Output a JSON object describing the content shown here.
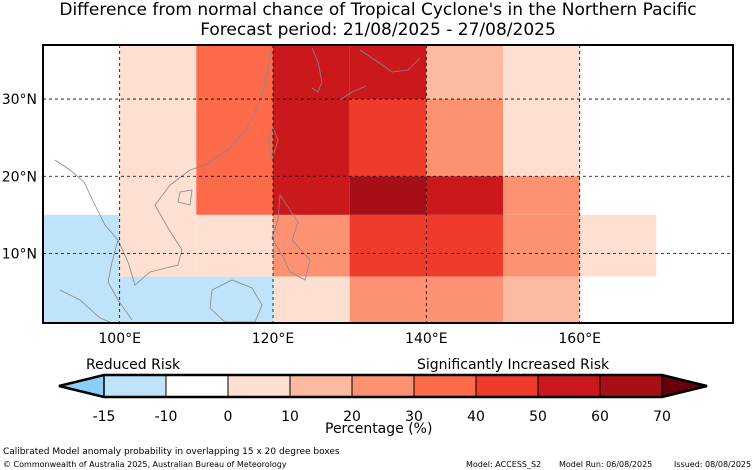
{
  "title_line1": "Difference from normal chance of Tropical Cyclone's in the Northern Pacific",
  "title_line2": "Forecast period: 21/08/2025 - 27/08/2025",
  "map": {
    "lon_range": [
      90,
      180
    ],
    "lat_range": [
      1,
      37
    ],
    "lon_ticks": [
      {
        "value": 100,
        "label": "100°E"
      },
      {
        "value": 120,
        "label": "120°E"
      },
      {
        "value": 140,
        "label": "140°E"
      },
      {
        "value": 160,
        "label": "160°E"
      }
    ],
    "lat_ticks": [
      {
        "value": 30,
        "label": "30°N"
      },
      {
        "value": 20,
        "label": "20°N"
      },
      {
        "value": 10,
        "label": "10°N"
      }
    ],
    "gridlines": "dashed",
    "cells": [
      {
        "lon": [
          90,
          100
        ],
        "lat": [
          15,
          37
        ],
        "value": -10
      },
      {
        "lon": [
          100,
          110
        ],
        "lat": [
          15,
          37
        ],
        "value": 5
      },
      {
        "lon": [
          110,
          120
        ],
        "lat": [
          15,
          37
        ],
        "value": 35
      },
      {
        "lon": [
          120,
          130
        ],
        "lat": [
          15,
          37
        ],
        "value": 50
      },
      {
        "lon": [
          130,
          140
        ],
        "lat": [
          30,
          37
        ],
        "value": 50
      },
      {
        "lon": [
          140,
          150
        ],
        "lat": [
          30,
          37
        ],
        "value": 15
      },
      {
        "lon": [
          150,
          160
        ],
        "lat": [
          30,
          37
        ],
        "value": 5
      },
      {
        "lon": [
          130,
          140
        ],
        "lat": [
          20,
          30
        ],
        "value": 45
      },
      {
        "lon": [
          140,
          150
        ],
        "lat": [
          20,
          30
        ],
        "value": 25
      },
      {
        "lon": [
          150,
          160
        ],
        "lat": [
          20,
          30
        ],
        "value": 5
      },
      {
        "lon": [
          130,
          140
        ],
        "lat": [
          15,
          20
        ],
        "value": 65
      },
      {
        "lon": [
          140,
          150
        ],
        "lat": [
          15,
          20
        ],
        "value": 50
      },
      {
        "lon": [
          150,
          160
        ],
        "lat": [
          15,
          20
        ],
        "value": 25
      },
      {
        "lon": [
          90,
          100
        ],
        "lat": [
          1,
          15
        ],
        "value": -15
      },
      {
        "lon": [
          100,
          110
        ],
        "lat": [
          7,
          15
        ],
        "value": 0
      },
      {
        "lon": [
          110,
          120
        ],
        "lat": [
          7,
          15
        ],
        "value": 5
      },
      {
        "lon": [
          120,
          130
        ],
        "lat": [
          7,
          15
        ],
        "value": 25
      },
      {
        "lon": [
          130,
          140
        ],
        "lat": [
          7,
          15
        ],
        "value": 45
      },
      {
        "lon": [
          140,
          150
        ],
        "lat": [
          7,
          15
        ],
        "value": 45
      },
      {
        "lon": [
          150,
          160
        ],
        "lat": [
          7,
          15
        ],
        "value": 25
      },
      {
        "lon": [
          160,
          170
        ],
        "lat": [
          7,
          15
        ],
        "value": 5
      },
      {
        "lon": [
          100,
          120
        ],
        "lat": [
          1,
          7
        ],
        "value": -15
      },
      {
        "lon": [
          120,
          130
        ],
        "lat": [
          1,
          7
        ],
        "value": 0
      },
      {
        "lon": [
          130,
          150
        ],
        "lat": [
          1,
          7
        ],
        "value": 25
      },
      {
        "lon": [
          150,
          160
        ],
        "lat": [
          1,
          7
        ],
        "value": 15
      }
    ]
  },
  "legend": {
    "left_label": "Reduced Risk",
    "right_label": "Significantly Increased Risk",
    "unit_label": "Percentage (%)",
    "boundaries": [
      -15,
      -10,
      0,
      10,
      20,
      30,
      40,
      50,
      60,
      70
    ],
    "tick_labels": [
      "-15",
      "-10",
      "0",
      "10",
      "20",
      "30",
      "40",
      "50",
      "60",
      "70"
    ],
    "colors": [
      "#bfe3fa",
      "#ffffff",
      "#fee0d2",
      "#fcbba1",
      "#fc9272",
      "#fb6a4a",
      "#ef3b2c",
      "#cb181d",
      "#a50f15"
    ],
    "low_extend_color": "#89cff8",
    "high_extend_color": "#67000d"
  },
  "footer": {
    "line1": "Calibrated Model anomaly probability in overlapping 15 x 20 degree boxes",
    "copyright": "© Commonwealth of Australia 2025, Australian Bureau of Meteorology",
    "model": "Model: ACCESS_S2",
    "model_run": "Model Run: 06/08/2025",
    "issued": "Issued: 08/08/2025"
  }
}
